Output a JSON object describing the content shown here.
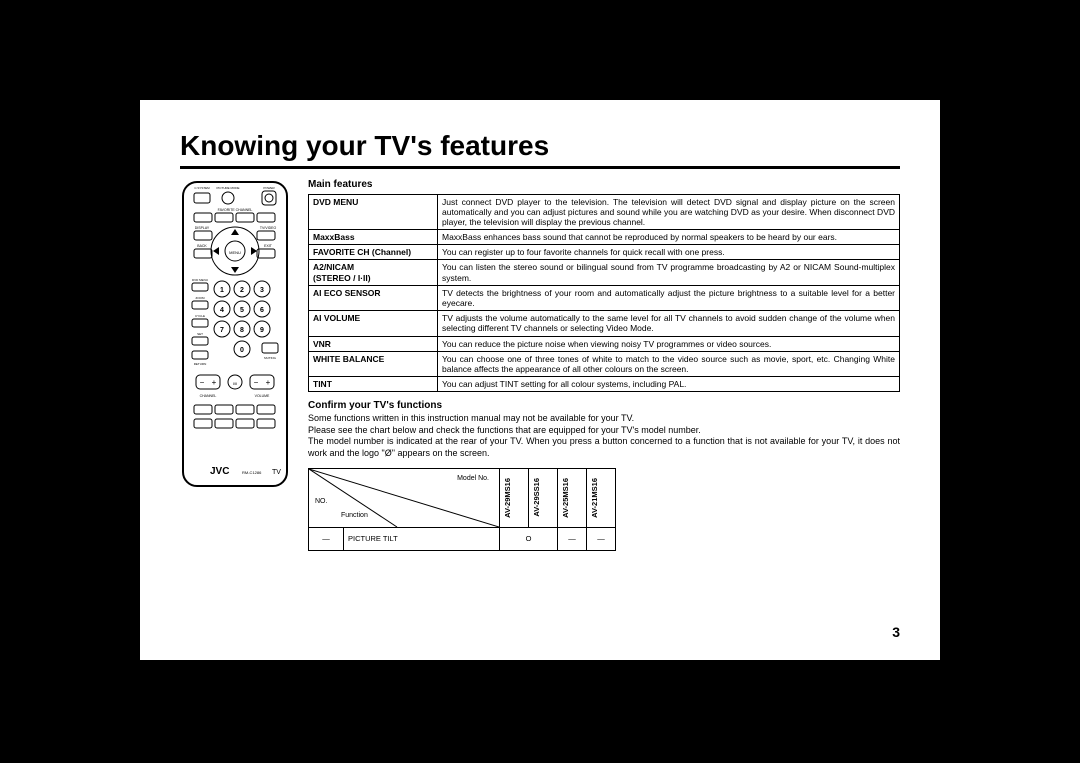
{
  "title": "Knowing your TV's features",
  "main_features_heading": "Main features",
  "features": [
    {
      "name": "DVD MENU",
      "desc": "Just connect DVD player to the television. The television will detect DVD signal and display picture on the screen automatically and you can adjust pictures and sound while you are watching DVD as your desire. When disconnect DVD player, the television will display the previous channel."
    },
    {
      "name": "MaxxBass",
      "desc": "MaxxBass enhances bass sound that cannot be reproduced by normal speakers to be heard by our ears."
    },
    {
      "name": "FAVORITE CH (Channel)",
      "desc": "You can register up to four favorite channels for quick recall with one press."
    },
    {
      "name": "A2/NICAM\n(STEREO / I·II)",
      "desc": "You can listen the stereo sound or bilingual sound from TV programme broadcasting by A2 or NICAM Sound-multiplex system."
    },
    {
      "name": "AI ECO SENSOR",
      "desc": "TV detects the brightness of your room and automatically adjust the picture brightness to a suitable level for a better eyecare."
    },
    {
      "name": "AI VOLUME",
      "desc": "TV adjusts the volume automatically to the same level for all TV channels to avoid sudden change of the volume when selecting different TV channels or selecting Video Mode."
    },
    {
      "name": "VNR",
      "desc": "You can reduce the picture noise when viewing noisy TV programmes or video sources."
    },
    {
      "name": "WHITE BALANCE",
      "desc": "You can choose one of three tones of white to match to the video source such as movie, sport, etc. Changing White balance affects the appearance of all other colours on the screen."
    },
    {
      "name": "TINT",
      "desc": "You can adjust TINT setting for all colour systems, including PAL."
    }
  ],
  "confirm_heading": "Confirm your TV's functions",
  "confirm_body": "Some functions written in this instruction manual may not be available for your TV.\nPlease see the chart below and check the functions that are equipped for your TV's model number.\nThe model number is indicated at the rear of your TV. When you press a button concerned to a function that is not available for your TV, it does not work and the logo \"Ø\" appears on the screen.",
  "model_table": {
    "no_label": "NO.",
    "function_label": "Function",
    "modelno_label": "Model No.",
    "models": [
      "AV-29MS16",
      "AV-29SS16",
      "AV-25MS16",
      "AV-21MS16"
    ],
    "row": {
      "no": "—",
      "function": "PICTURE TILT",
      "cells": [
        "O",
        "—",
        "—"
      ]
    },
    "merge_first_two_models": true
  },
  "page_number": "3",
  "remote": {
    "brand": "JVC",
    "model_label": "RM-C1286",
    "tv_label": "TV",
    "top_labels": {
      "system": "C.SYSTEM",
      "picture": "PICTURE MODE",
      "power": "POWER"
    },
    "fav": "FAVORITE CHANNEL",
    "row_labels_left": [
      "DISPLAY",
      "BACK"
    ],
    "row_labels_right": [
      "TV/VIDEO",
      "EXIT"
    ],
    "dvd_menu": "DVD MENU",
    "menu": "MENU",
    "ok": "OK",
    "zoom": "ZOOM",
    "set": "SET",
    "cycle": "CYCLE",
    "return": "RETURN",
    "numbers": [
      "1",
      "2",
      "3",
      "4",
      "5",
      "6",
      "7",
      "8",
      "9",
      "0"
    ],
    "muting": "MUTING",
    "channel": "CHANNEL",
    "volume": "VOLUME",
    "stereo": "I/II",
    "minus": "−",
    "plus": "+"
  },
  "colors": {
    "bg": "#000000",
    "page": "#ffffff",
    "text": "#000000"
  }
}
